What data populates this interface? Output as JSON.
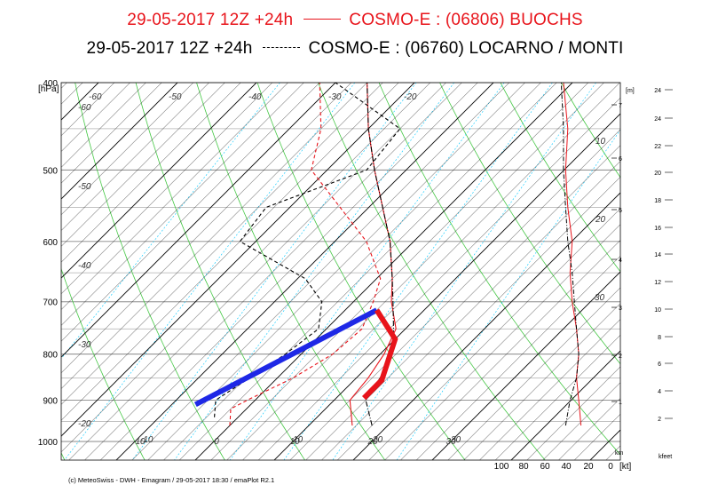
{
  "header": {
    "line1": {
      "text_left": "29-05-2017  12Z +24h",
      "text_right": "COSMO-E : (06806)  BUOCHS",
      "color": "#e8141b",
      "line_style": "solid"
    },
    "line2": {
      "text_left": "29-05-2017  12Z +24h",
      "text_right": "COSMO-E : (06760)  LOCARNO / MONTI",
      "color": "#000000",
      "line_style": "dash-dot"
    }
  },
  "footer": "(c) MeteoSwiss - DWH - Emagram / 29-05-2017  18:30 / emaPlot R2.1",
  "colors": {
    "isotherm": "#000000",
    "dry_adiabat": "#46c846",
    "mixing_ratio": "#00c8ff",
    "series_a": "#e8141b",
    "series_b": "#000000",
    "highlight_blue": "#1e28e6",
    "highlight_red": "#e8141b"
  },
  "chart_data": {
    "type": "line",
    "subtype": "emagram",
    "title": "",
    "ylabel": "[hPa]",
    "pressure_ticks": [
      "400",
      "500",
      "600",
      "700",
      "800",
      "900",
      "1000"
    ],
    "pressure_values": [
      400,
      500,
      600,
      700,
      800,
      900,
      1000
    ],
    "ylim": [
      1030,
      400
    ],
    "xlim_temp": [
      -15,
      45
    ],
    "temp_ticks_bottom": [
      "10",
      "0",
      "10",
      "20",
      "30"
    ],
    "isotherm_labels": [
      "-60",
      "-50",
      "-40",
      "-30",
      "-20",
      "-60",
      "-50",
      "-40",
      "-30",
      "-20",
      "-10",
      "10",
      "20",
      "30"
    ],
    "height_m_label": "[m]",
    "height_km_ticks": [
      "1",
      "2",
      "3",
      "4",
      "5",
      "6",
      "7"
    ],
    "height_km_label": "km",
    "height_kfeet_ticks": [
      "2",
      "4",
      "6",
      "8",
      "10",
      "12",
      "14",
      "16",
      "18",
      "20",
      "22",
      "24"
    ],
    "height_kfeet_label": "kfeet",
    "wind_speed_ticks": [
      "100",
      "80",
      "60",
      "40",
      "20",
      "0"
    ],
    "wind_speed_label": "[kt]",
    "wind_isotach_labels": [
      "10",
      "20",
      "30"
    ],
    "series": [
      {
        "name": "COSMO-E : (06806)  BUOCHS",
        "profiles": [
          {
            "variable": "temperature",
            "style": "solid",
            "points": [
              [
                960,
                15.5
              ],
              [
                900,
                12.0
              ],
              [
                850,
                11.5
              ],
              [
                800,
                10.5
              ],
              [
                750,
                8.8
              ],
              [
                700,
                4.8
              ],
              [
                660,
                2.0
              ],
              [
                600,
                -3.0
              ],
              [
                500,
                -14.0
              ],
              [
                450,
                -20.0
              ],
              [
                400,
                -26.0
              ]
            ]
          },
          {
            "variable": "dewpoint",
            "style": "dashed",
            "points": [
              [
                960,
                0.0
              ],
              [
                920,
                -2.0
              ],
              [
                900,
                -1.0
              ],
              [
                850,
                2.0
              ],
              [
                800,
                4.0
              ],
              [
                750,
                4.5
              ],
              [
                700,
                2.5
              ],
              [
                660,
                0.5
              ],
              [
                600,
                -6.0
              ],
              [
                500,
                -22.0
              ],
              [
                450,
                -26.0
              ],
              [
                400,
                -32.0
              ]
            ]
          }
        ],
        "wind_profile_kt": [
          [
            960,
            28
          ],
          [
            900,
            30
          ],
          [
            850,
            32
          ],
          [
            800,
            30
          ],
          [
            750,
            32
          ],
          [
            700,
            36
          ],
          [
            650,
            38
          ],
          [
            600,
            36
          ],
          [
            550,
            40
          ],
          [
            500,
            42
          ],
          [
            450,
            40
          ],
          [
            400,
            44
          ]
        ]
      },
      {
        "name": "COSMO-E : (06760)  LOCARNO / MONTI",
        "profiles": [
          {
            "variable": "temperature",
            "style": "dash-dot",
            "points": [
              [
                960,
                18.0
              ],
              [
                900,
                14.0
              ],
              [
                850,
                13.0
              ],
              [
                800,
                11.5
              ],
              [
                750,
                8.5
              ],
              [
                700,
                5.0
              ],
              [
                660,
                2.0
              ],
              [
                600,
                -3.0
              ],
              [
                500,
                -14.0
              ],
              [
                450,
                -20.0
              ],
              [
                400,
                -26.0
              ]
            ]
          },
          {
            "variable": "dewpoint",
            "style": "dashed",
            "points": [
              [
                940,
                -3.0
              ],
              [
                900,
                -5.0
              ],
              [
                850,
                -3.5
              ],
              [
                800,
                -2.0
              ],
              [
                750,
                -1.0
              ],
              [
                700,
                -4.0
              ],
              [
                660,
                -9.0
              ],
              [
                600,
                -22.0
              ],
              [
                550,
                -23.0
              ],
              [
                500,
                -15.0
              ],
              [
                450,
                -16.0
              ],
              [
                400,
                -30.0
              ]
            ]
          }
        ],
        "wind_profile_kt": [
          [
            960,
            42
          ],
          [
            900,
            38
          ],
          [
            850,
            32
          ],
          [
            800,
            30
          ],
          [
            750,
            32
          ],
          [
            700,
            34
          ],
          [
            650,
            36
          ],
          [
            600,
            40
          ],
          [
            550,
            42
          ],
          [
            500,
            44
          ],
          [
            450,
            44
          ],
          [
            400,
            46
          ]
        ]
      }
    ],
    "annotations": [
      {
        "name": "blue-overlay",
        "style": "thick",
        "points": [
          [
            910,
            -7.0
          ],
          [
            715,
            4.0
          ]
        ]
      },
      {
        "name": "red-overlay",
        "style": "thick",
        "points": [
          [
            715,
            4.0
          ],
          [
            770,
            10.0
          ],
          [
            855,
            13.5
          ],
          [
            895,
            13.5
          ]
        ]
      }
    ]
  }
}
